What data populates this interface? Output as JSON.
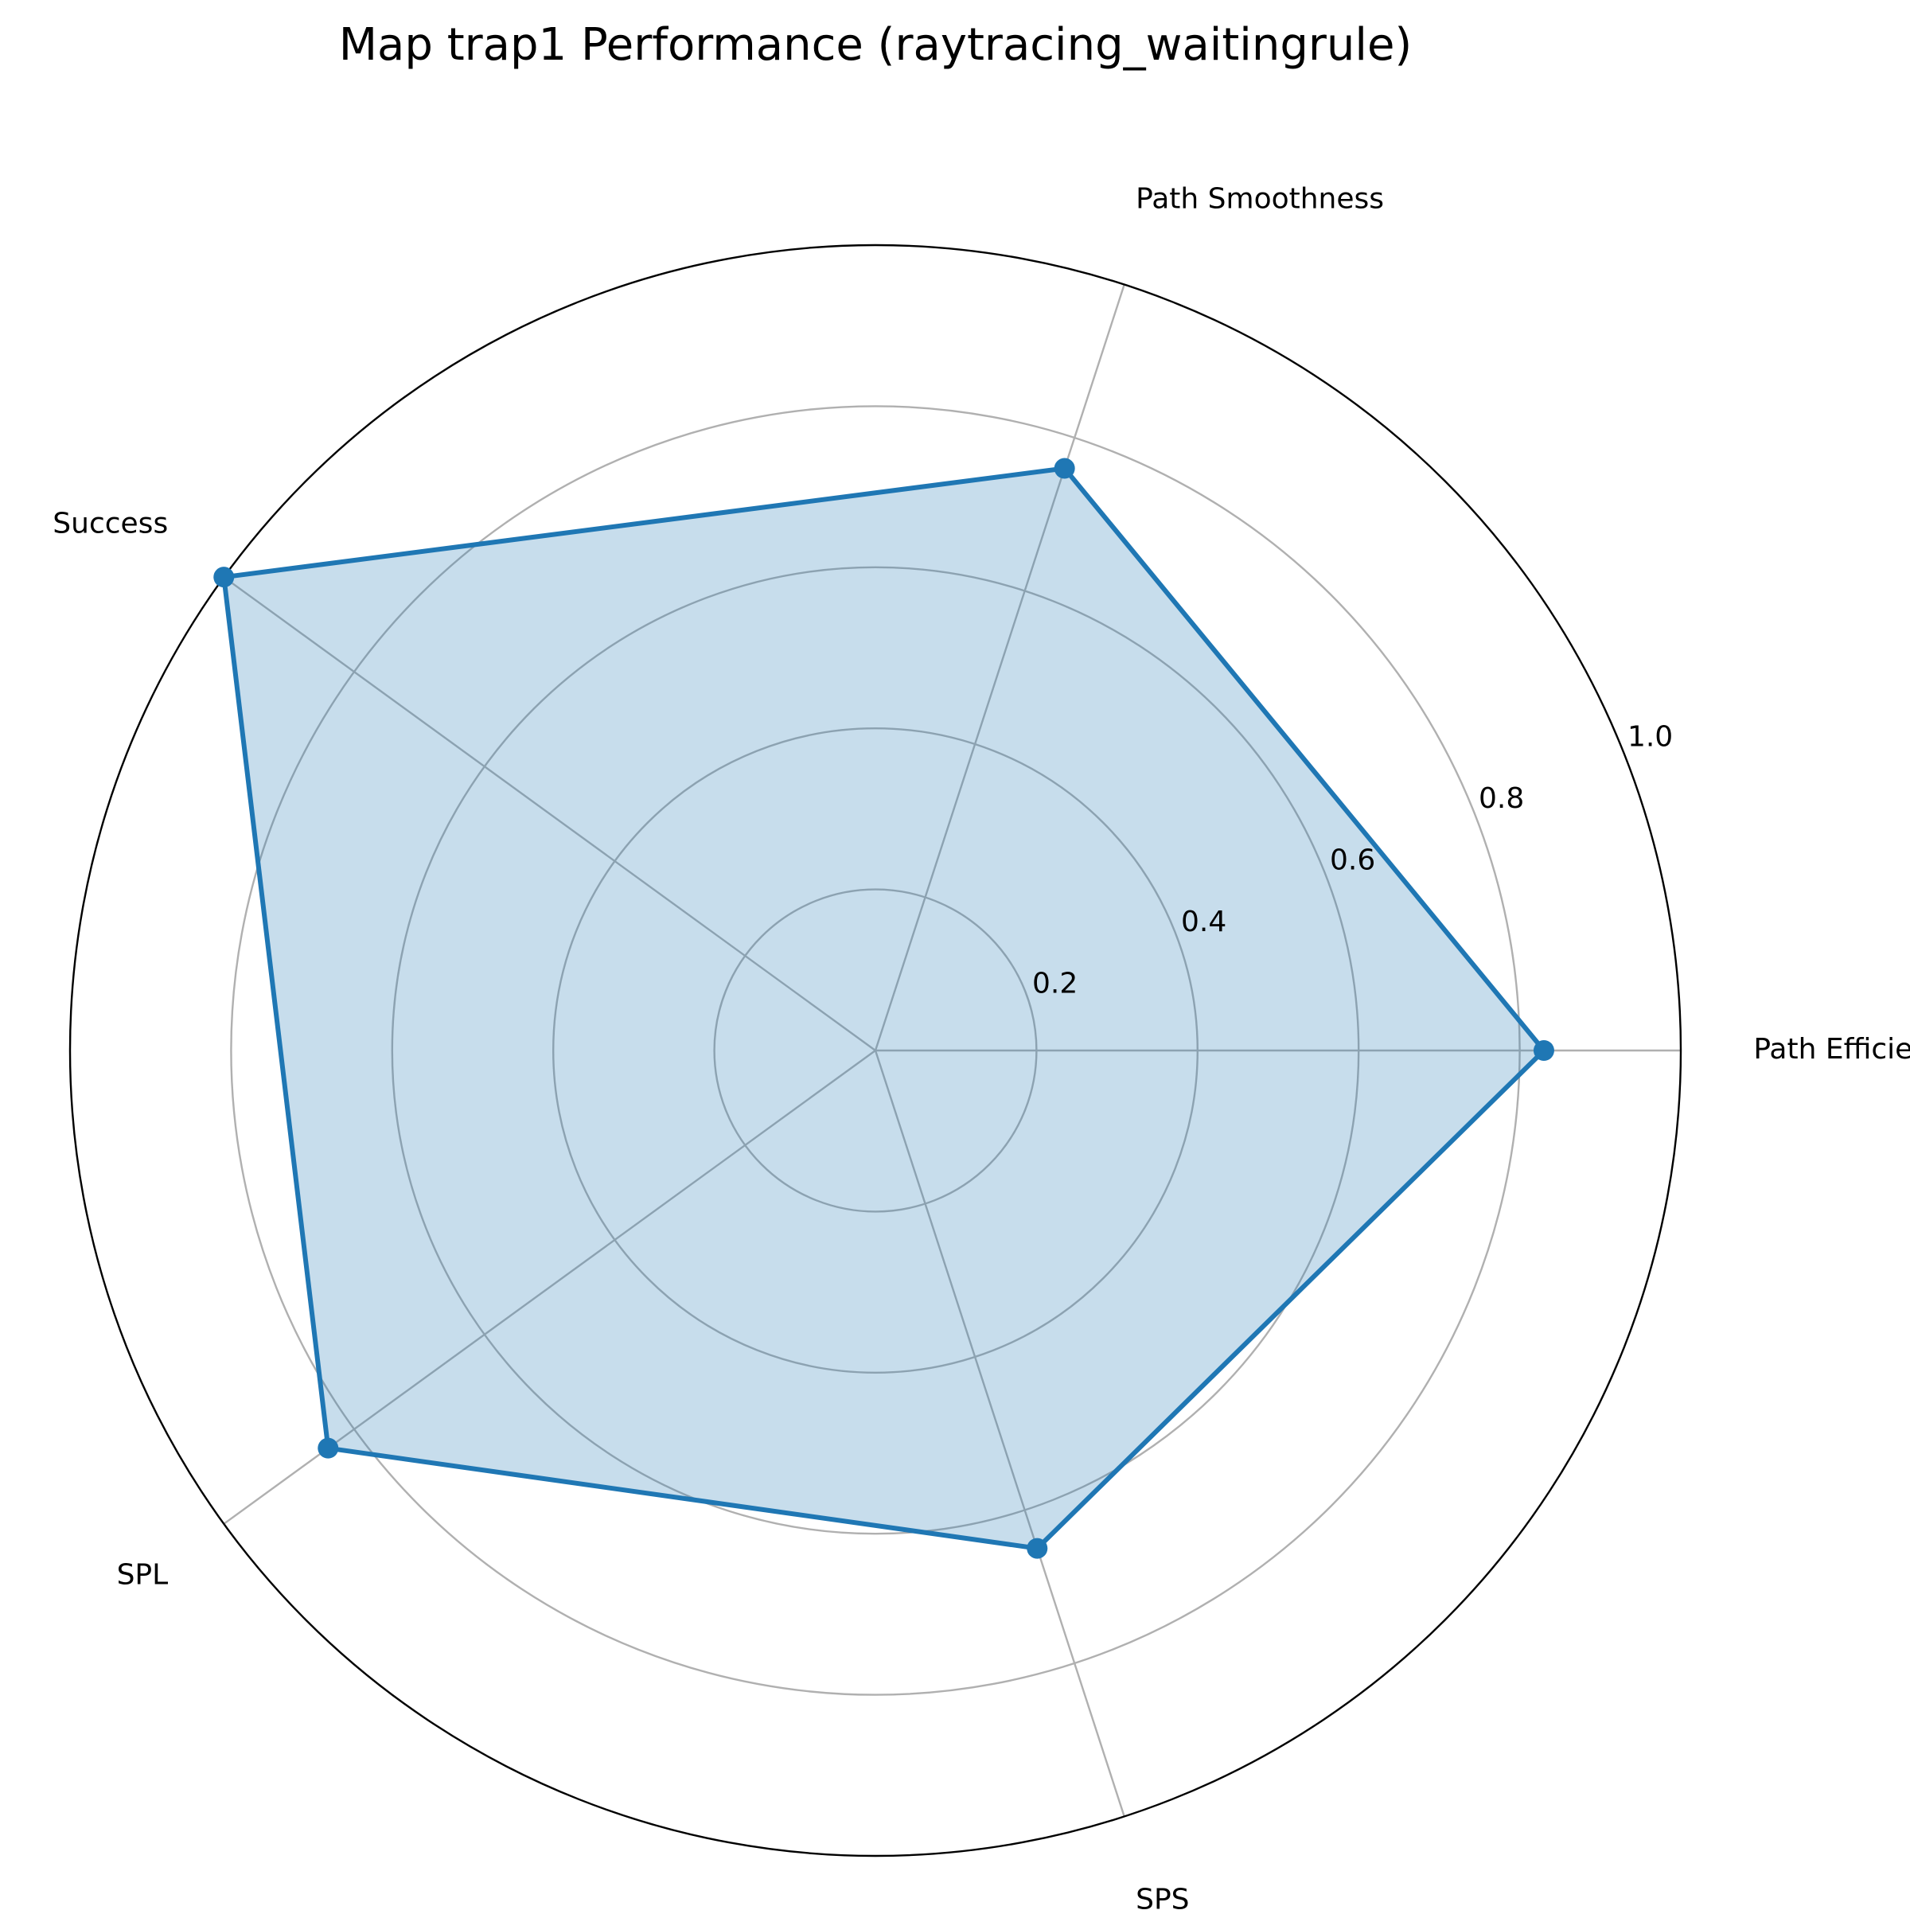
{
  "chart_data": {
    "type": "radar",
    "title": "Map trap1 Performance (raytracing_waitingrule)",
    "categories": [
      "Path Efficiency",
      "Path Smoothness",
      "Success",
      "SPL",
      "SPS"
    ],
    "series": [
      {
        "values": [
          0.83,
          0.76,
          1.0,
          0.84,
          0.65
        ]
      }
    ],
    "r_ticks": [
      "0.2",
      "0.4",
      "0.6",
      "0.8",
      "1.0"
    ],
    "r_tick_values": [
      0.2,
      0.4,
      0.6,
      0.8,
      1.0
    ],
    "ylim": [
      0,
      1.0
    ],
    "grid": true,
    "colors": {
      "series": "#1f77b4",
      "fill": "#1f77b4",
      "grid": "#b0b0b0",
      "outer": "#000000"
    }
  }
}
